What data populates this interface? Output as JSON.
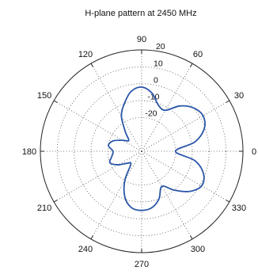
{
  "chart_data": {
    "type": "line",
    "projection": "polar",
    "title": "H-plane pattern at 2450 MHz",
    "xlabel": "",
    "ylabel": "",
    "theta_unit": "degrees",
    "theta_ticks": [
      0,
      30,
      60,
      90,
      120,
      150,
      180,
      210,
      240,
      270,
      300,
      330
    ],
    "theta_tick_labels": [
      "0",
      "30",
      "60",
      "90",
      "120",
      "150",
      "180",
      "210",
      "240",
      "270",
      "300",
      "330"
    ],
    "r_ticks": [
      -20,
      -10,
      0,
      10,
      20
    ],
    "r_tick_labels": [
      "-20",
      "-10",
      "0",
      "10",
      "20"
    ],
    "rlim": [
      -40,
      20
    ],
    "grid": true,
    "line_color": "#2a56a8",
    "series": [
      {
        "theta": [
          0,
          10,
          20,
          30,
          40,
          50,
          60,
          70,
          80,
          90,
          100,
          110,
          120,
          130,
          140,
          150,
          160,
          170,
          180,
          190,
          200,
          210,
          220,
          230,
          240,
          250,
          260,
          270,
          280,
          290,
          300,
          310,
          320,
          330,
          340,
          350,
          360
        ],
        "r": [
          -20,
          -8,
          -0.5,
          2,
          0,
          -5,
          -12,
          -11,
          -5,
          -2,
          -4,
          -10,
          -16,
          -25,
          -30,
          -27,
          -22,
          -20,
          -23,
          -22,
          -20,
          -24,
          -29,
          -30,
          -20,
          -11,
          -6,
          -5,
          -6,
          -10,
          -16,
          -10,
          -3,
          1,
          -1,
          -8,
          -20
        ]
      }
    ]
  }
}
